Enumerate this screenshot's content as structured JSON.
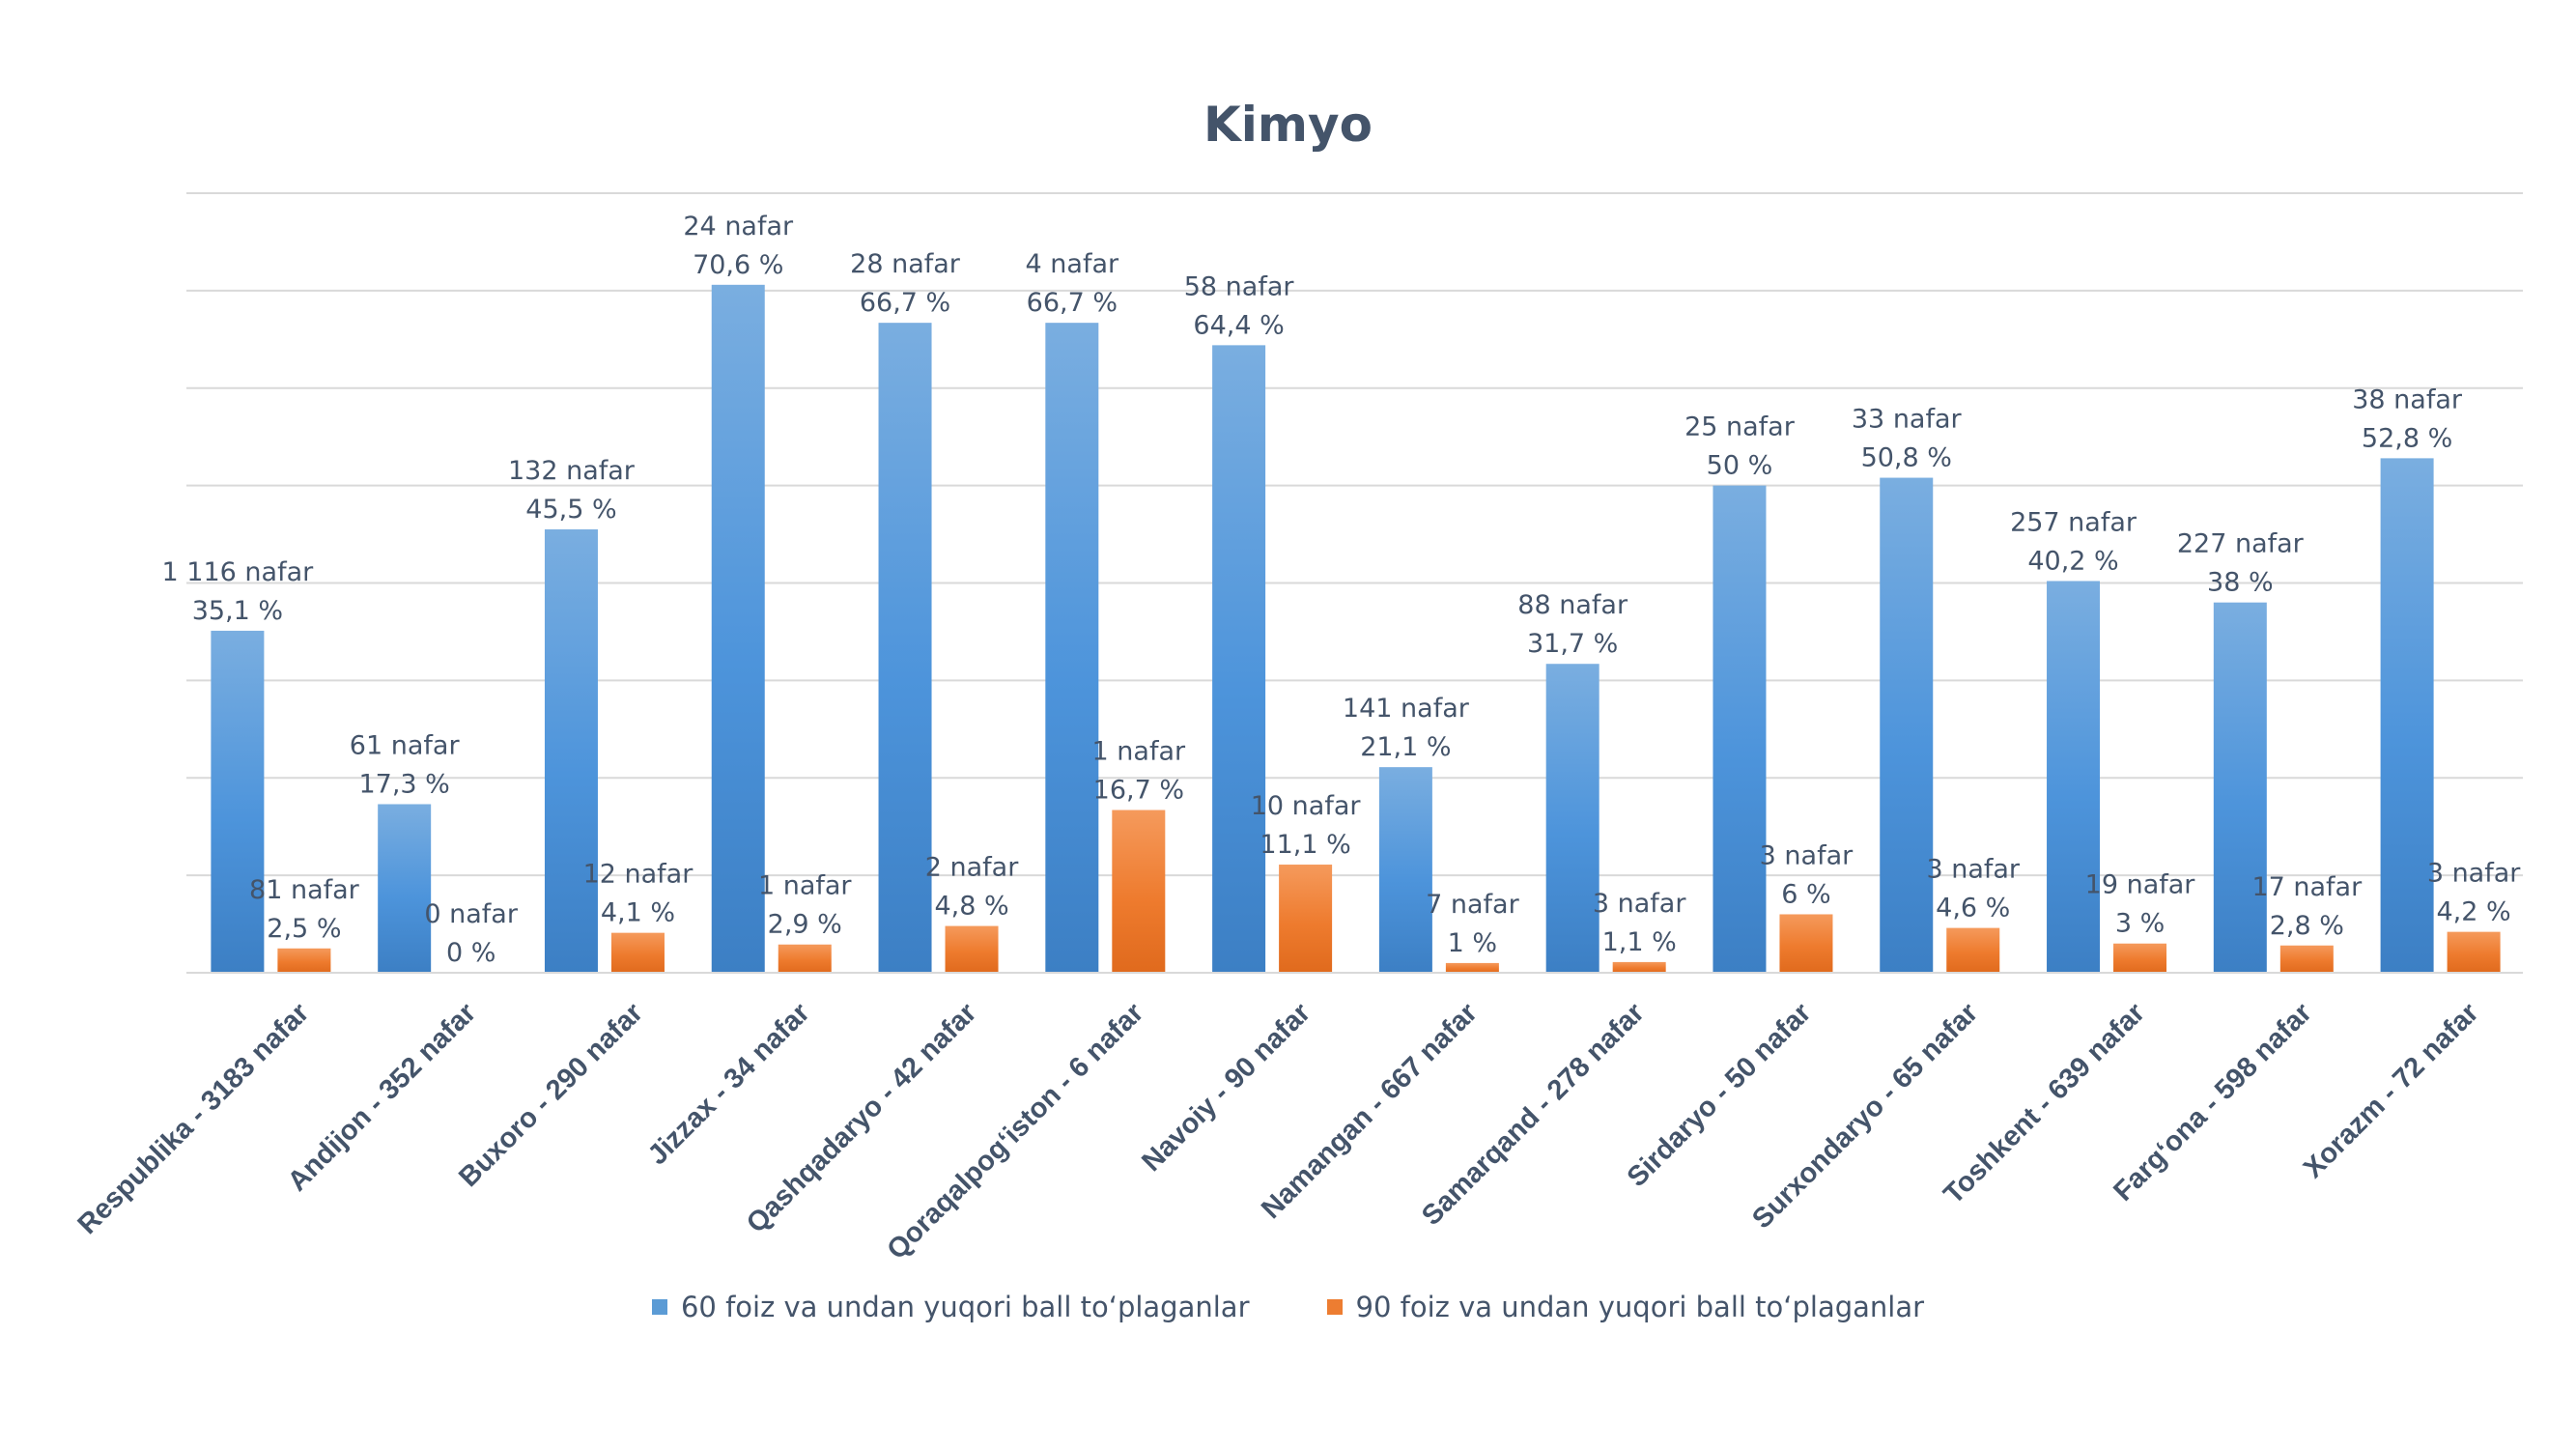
{
  "chart_data": {
    "type": "bar",
    "title": "Kimyo",
    "categories": [
      "Respublika - 3183 nafar",
      "Andijon - 352 nafar",
      "Buxoro - 290 nafar",
      "Jizzax - 34 nafar",
      "Qashqadaryo - 42 nafar",
      "Qoraqalpog‘iston - 6 nafar",
      "Navoiy - 90 nafar",
      "Namangan - 667 nafar",
      "Samarqand - 278 nafar",
      "Sirdaryo - 50 nafar",
      "Surxondaryo - 65 nafar",
      "Toshkent - 639 nafar",
      "Farg‘ona - 598 nafar",
      "Xorazm - 72 nafar"
    ],
    "ylim": [
      0,
      80
    ],
    "grid": true,
    "legend_position": "bottom",
    "series": [
      {
        "name": "60 foiz va undan yuqori ball to‘plaganlar",
        "color": "#5b9bd5",
        "values": [
          35.1,
          17.3,
          45.5,
          70.6,
          66.7,
          66.7,
          64.4,
          21.1,
          31.7,
          50,
          50.8,
          40.2,
          38,
          52.8
        ],
        "labels": [
          [
            "1 116 nafar",
            "35,1 %"
          ],
          [
            "61 nafar",
            "17,3 %"
          ],
          [
            "132 nafar",
            "45,5 %"
          ],
          [
            "24 nafar",
            "70,6 %"
          ],
          [
            "28 nafar",
            "66,7 %"
          ],
          [
            "4 nafar",
            "66,7 %"
          ],
          [
            "58 nafar",
            "64,4 %"
          ],
          [
            "141 nafar",
            "21,1 %"
          ],
          [
            "88 nafar",
            "31,7 %"
          ],
          [
            "25 nafar",
            "50 %"
          ],
          [
            "33 nafar",
            "50,8 %"
          ],
          [
            "257 nafar",
            "40,2 %"
          ],
          [
            "227 nafar",
            "38 %"
          ],
          [
            "38 nafar",
            "52,8 %"
          ]
        ]
      },
      {
        "name": "90 foiz va undan yuqori ball to‘plaganlar",
        "color": "#ed7d31",
        "values": [
          2.5,
          0,
          4.1,
          2.9,
          4.8,
          16.7,
          11.1,
          1,
          1.1,
          6,
          4.6,
          3,
          2.8,
          4.2
        ],
        "labels": [
          [
            "81 nafar",
            "2,5 %"
          ],
          [
            "0 nafar",
            "0 %"
          ],
          [
            "12 nafar",
            "4,1 %"
          ],
          [
            "1 nafar",
            "2,9 %"
          ],
          [
            "2 nafar",
            "4,8 %"
          ],
          [
            "1 nafar",
            "16,7 %"
          ],
          [
            "10 nafar",
            "11,1 %"
          ],
          [
            "7 nafar",
            "1 %"
          ],
          [
            "3 nafar",
            "1,1 %"
          ],
          [
            "3 nafar",
            "6 %"
          ],
          [
            "3 nafar",
            "4,6 %"
          ],
          [
            "19 nafar",
            "3 %"
          ],
          [
            "17 nafar",
            "2,8 %"
          ],
          [
            "3 nafar",
            "4,2 %"
          ]
        ]
      }
    ]
  }
}
